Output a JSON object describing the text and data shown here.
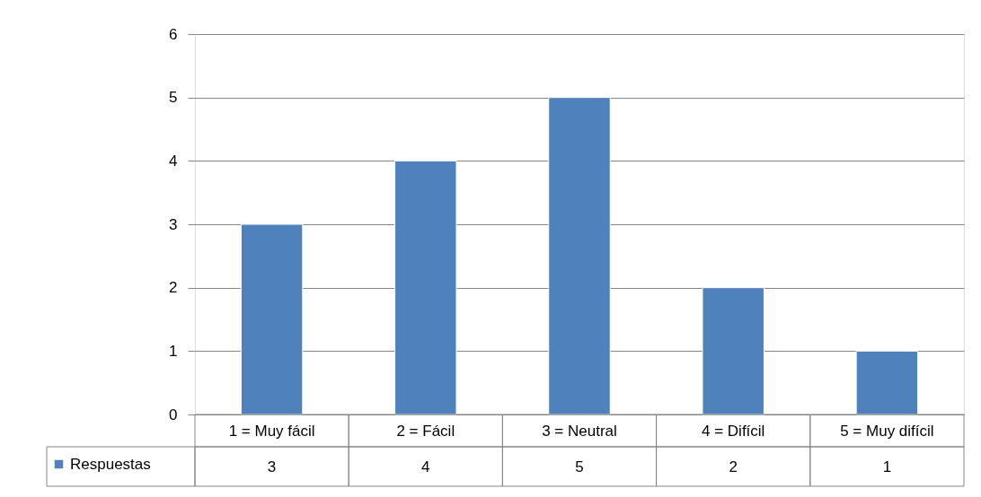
{
  "chart_data": {
    "type": "bar",
    "categories": [
      "1 = Muy fácil",
      "2 = Fácil",
      "3 = Neutral",
      "4 = Difícil",
      "5 = Muy difícil"
    ],
    "series": [
      {
        "name": "Respuestas",
        "color": "#4f81bd",
        "values": [
          3,
          4,
          5,
          2,
          1
        ]
      }
    ],
    "ylim": [
      0,
      6
    ],
    "yticks": [
      0,
      1,
      2,
      3,
      4,
      5,
      6
    ],
    "grid": "y",
    "data_labels": true,
    "legend": "bottom left"
  }
}
